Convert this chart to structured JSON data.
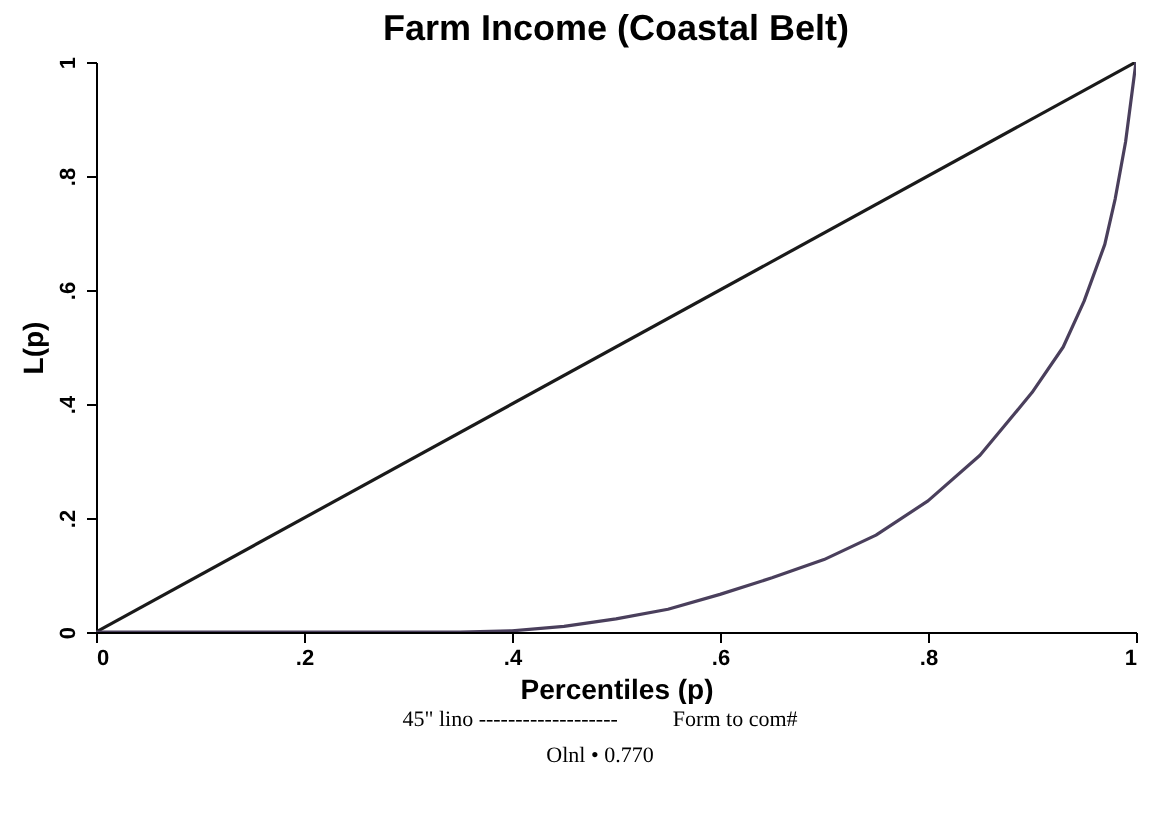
{
  "chart_data": {
    "type": "line",
    "title": "Farm Income (Coastal Belt)",
    "xlabel": "Percentiles (p)",
    "ylabel": "L(p)",
    "xlim": [
      0,
      1
    ],
    "ylim": [
      0,
      1
    ],
    "xticks": [
      0,
      {
        "value": 0.2,
        "label": ".2"
      },
      {
        "value": 0.4,
        "label": ".4"
      },
      {
        "value": 0.6,
        "label": ".6"
      },
      {
        "value": 0.8,
        "label": ".8"
      },
      1
    ],
    "yticks": [
      0,
      {
        "value": 0.2,
        "label": ".2"
      },
      {
        "value": 0.4,
        "label": ".4"
      },
      {
        "value": 0.6,
        "label": ".6"
      },
      {
        "value": 0.8,
        "label": ".8"
      },
      1
    ],
    "grid": false,
    "marker": "none",
    "line_style": "solid",
    "series": [
      {
        "color": "#1a1a1a",
        "x": [
          0,
          1
        ],
        "values": [
          0,
          1
        ]
      },
      {
        "color": "#4a3f5c",
        "x": [
          0,
          0.1,
          0.2,
          0.3,
          0.35,
          0.4,
          0.45,
          0.5,
          0.55,
          0.6,
          0.65,
          0.7,
          0.75,
          0.8,
          0.85,
          0.9,
          0.93,
          0.95,
          0.97,
          0.98,
          0.99,
          1
        ],
        "values": [
          0,
          0,
          0,
          0,
          0,
          0.002,
          0.01,
          0.023,
          0.04,
          0.066,
          0.095,
          0.127,
          0.17,
          0.23,
          0.31,
          0.42,
          0.5,
          0.58,
          0.68,
          0.76,
          0.86,
          1
        ]
      }
    ],
    "annotations": [
      "45\" lino -------------------          Form to com#",
      "Olnl • 0.770"
    ]
  }
}
